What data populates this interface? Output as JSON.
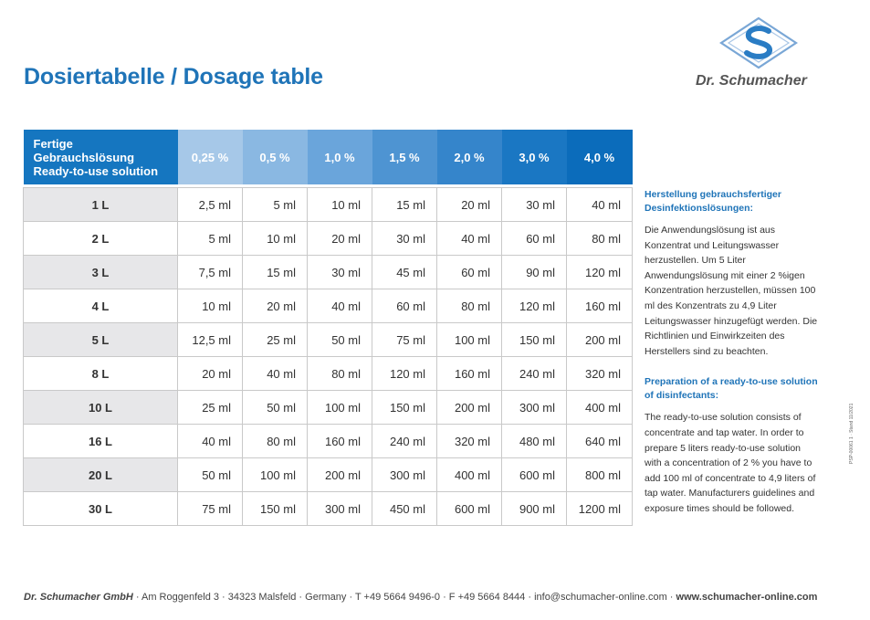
{
  "title": "Dosiertabelle / Dosage table",
  "logo": {
    "brand": "Dr. Schumacher"
  },
  "table": {
    "header_lines": [
      "Fertige",
      "Gebrauchslösung",
      "Ready-to-use solution"
    ],
    "concentrations": [
      "0,25 %",
      "0,5 %",
      "1,0 %",
      "1,5 %",
      "2,0 %",
      "3,0 %",
      "4,0 %"
    ],
    "header_colors": [
      "#a6c8e8",
      "#8ab8e2",
      "#6aa5db",
      "#4e94d2",
      "#3585cb",
      "#1a77c3",
      "#0b6cbb"
    ],
    "rows": [
      {
        "volume": "1 L",
        "values": [
          "2,5 ml",
          "5 ml",
          "10 ml",
          "15 ml",
          "20 ml",
          "30 ml",
          "40 ml"
        ]
      },
      {
        "volume": "2 L",
        "values": [
          "5 ml",
          "10 ml",
          "20 ml",
          "30 ml",
          "40 ml",
          "60 ml",
          "80 ml"
        ]
      },
      {
        "volume": "3 L",
        "values": [
          "7,5 ml",
          "15 ml",
          "30 ml",
          "45 ml",
          "60 ml",
          "90 ml",
          "120 ml"
        ]
      },
      {
        "volume": "4 L",
        "values": [
          "10 ml",
          "20 ml",
          "40 ml",
          "60 ml",
          "80 ml",
          "120 ml",
          "160 ml"
        ]
      },
      {
        "volume": "5 L",
        "values": [
          "12,5 ml",
          "25 ml",
          "50 ml",
          "75 ml",
          "100 ml",
          "150 ml",
          "200 ml"
        ]
      },
      {
        "volume": "8 L",
        "values": [
          "20 ml",
          "40 ml",
          "80 ml",
          "120 ml",
          "160 ml",
          "240 ml",
          "320 ml"
        ]
      },
      {
        "volume": "10 L",
        "values": [
          "25 ml",
          "50 ml",
          "100 ml",
          "150 ml",
          "200 ml",
          "300 ml",
          "400 ml"
        ]
      },
      {
        "volume": "16 L",
        "values": [
          "40 ml",
          "80 ml",
          "160 ml",
          "240 ml",
          "320 ml",
          "480 ml",
          "640 ml"
        ]
      },
      {
        "volume": "20 L",
        "values": [
          "50 ml",
          "100 ml",
          "200 ml",
          "300 ml",
          "400 ml",
          "600 ml",
          "800 ml"
        ]
      },
      {
        "volume": "30 L",
        "values": [
          "75 ml",
          "150 ml",
          "300 ml",
          "450 ml",
          "600 ml",
          "900 ml",
          "1200 ml"
        ]
      }
    ]
  },
  "side": {
    "de_heading": "Herstellung gebrauchsfertiger Desinfektionslösungen:",
    "de_text": "Die Anwendungslösung ist aus Konzentrat und Leitungswasser herzustellen. Um 5 Liter Anwendungslösung mit einer 2 %igen Konzentration herzustellen, müssen 100 ml des Konzentrats zu 4,9 Liter Leitungswasser hinzugefügt werden. Die Richtlinien und Einwirkzeiten des Herstellers sind zu beachten.",
    "en_heading": "Preparation of a ready-to-use solution of disinfectants:",
    "en_text": "The ready-to-use solution consists of concentrate and tap water. In order to prepare 5 liters ready-to-use solution with a concentration of 2 % you have to add 100 ml of concentrate to 4,9 liters of tap water. Manufacturers guidelines and exposure times should be followed."
  },
  "vertical_code": "PSP-00061 1 · Stand 11/2021",
  "footer": {
    "company": "Dr. Schumacher GmbH",
    "address": " · Am Roggenfeld 3 · 34323 Malsfeld · Germany · T +49 5664 9496-0 · F +49 5664 8444 · info@schumacher-online.com · ",
    "website": "www.schumacher-online.com"
  },
  "colors": {
    "accent": "#1f74b8",
    "header_label": "#1576c0",
    "row_shade": "#e9e9eb"
  }
}
